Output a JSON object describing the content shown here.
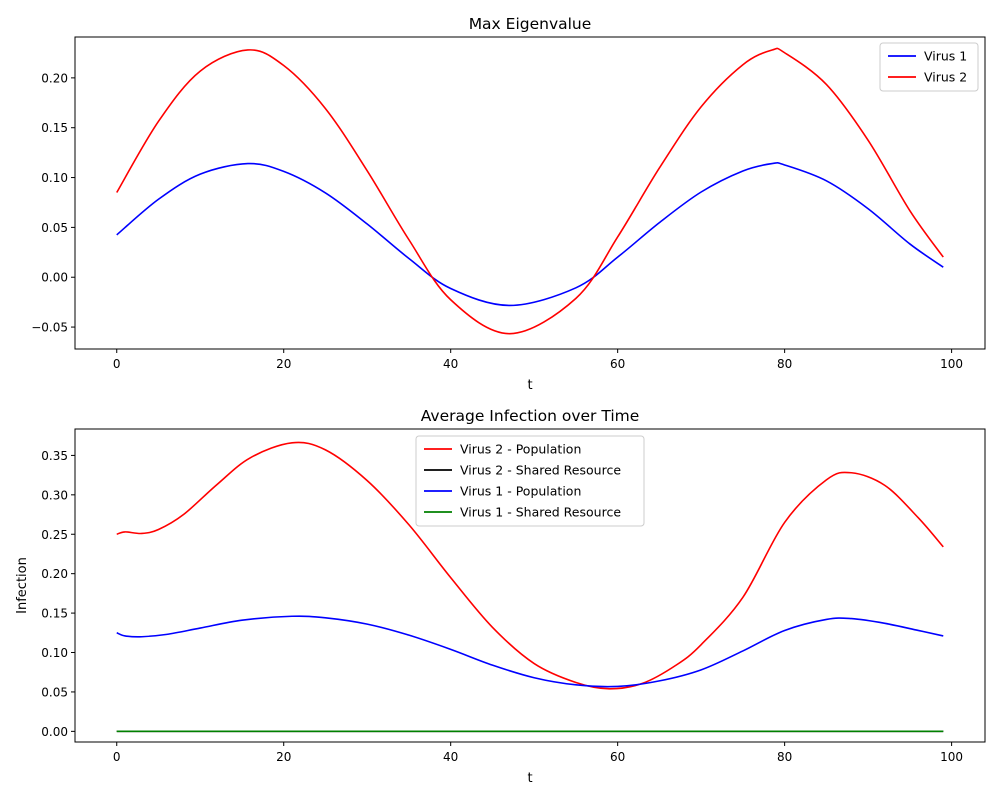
{
  "chart_data": [
    {
      "type": "line",
      "title": "Max Eigenvalue",
      "xlabel": "t",
      "ylabel": "",
      "xlim": [
        -5,
        104
      ],
      "ylim": [
        -0.072,
        0.241
      ],
      "xticks": [
        0,
        20,
        40,
        60,
        80,
        100
      ],
      "xtick_labels": [
        "0",
        "20",
        "40",
        "60",
        "80",
        "100"
      ],
      "yticks": [
        -0.05,
        0.0,
        0.05,
        0.1,
        0.15,
        0.2
      ],
      "ytick_labels": [
        "−0.05",
        "0.00",
        "0.05",
        "0.10",
        "0.15",
        "0.20"
      ],
      "grid": false,
      "legend_position": "upper right",
      "series": [
        {
          "name": "Virus 1",
          "color": "#0000ff",
          "x": [
            0,
            5,
            10,
            15.7,
            20,
            25,
            30,
            35,
            40,
            47.1,
            55,
            60,
            65,
            70,
            75,
            78.5,
            80,
            85,
            90,
            95,
            99
          ],
          "y": [
            0.0425,
            0.0782,
            0.1034,
            0.114,
            0.1062,
            0.0846,
            0.0534,
            0.0188,
            -0.0113,
            -0.0283,
            -0.0106,
            0.0202,
            0.0548,
            0.0855,
            0.1066,
            0.114,
            0.1126,
            0.0967,
            0.0687,
            0.0334,
            0.0101
          ]
        },
        {
          "name": "Virus 2",
          "color": "#ff0000",
          "x": [
            0,
            5,
            10,
            15.7,
            20,
            25,
            30,
            35,
            40,
            47.1,
            55,
            60,
            65,
            70,
            75,
            78.5,
            80,
            85,
            90,
            95,
            99
          ],
          "y": [
            0.085,
            0.1564,
            0.2068,
            0.228,
            0.2124,
            0.1692,
            0.1068,
            0.0376,
            -0.0226,
            -0.0566,
            -0.0212,
            0.0404,
            0.1096,
            0.171,
            0.2132,
            0.228,
            0.2252,
            0.1934,
            0.1374,
            0.0668,
            0.0202
          ]
        }
      ]
    },
    {
      "type": "line",
      "title": "Average Infection over Time",
      "xlabel": "t",
      "ylabel": "Infection",
      "xlim": [
        -5,
        104
      ],
      "ylim": [
        -0.0135,
        0.3835
      ],
      "xticks": [
        0,
        20,
        40,
        60,
        80,
        100
      ],
      "xtick_labels": [
        "0",
        "20",
        "40",
        "60",
        "80",
        "100"
      ],
      "yticks": [
        0.0,
        0.05,
        0.1,
        0.15,
        0.2,
        0.25,
        0.3,
        0.35
      ],
      "ytick_labels": [
        "0.00",
        "0.05",
        "0.10",
        "0.15",
        "0.20",
        "0.25",
        "0.30",
        "0.35"
      ],
      "grid": false,
      "legend_position": "upper center",
      "series": [
        {
          "name": "Virus 2 - Population",
          "color": "#ff0000",
          "x": [
            0,
            1,
            3,
            5,
            8,
            12,
            16,
            21,
            25,
            30,
            35,
            40,
            45,
            50,
            55,
            59,
            63,
            67,
            70,
            75,
            80,
            85,
            88,
            92,
            96,
            99
          ],
          "y": [
            0.25,
            0.253,
            0.251,
            0.256,
            0.275,
            0.313,
            0.347,
            0.366,
            0.357,
            0.318,
            0.262,
            0.195,
            0.132,
            0.086,
            0.062,
            0.054,
            0.061,
            0.084,
            0.11,
            0.17,
            0.265,
            0.319,
            0.328,
            0.312,
            0.271,
            0.234
          ]
        },
        {
          "name": "Virus 2 - Shared Resource",
          "color": "#000000",
          "x": [
            0,
            99
          ],
          "y": [
            0.0,
            0.0
          ]
        },
        {
          "name": "Virus 1 - Population",
          "color": "#0000ff",
          "x": [
            0,
            1,
            3,
            6,
            10,
            15,
            21,
            25,
            30,
            35,
            40,
            45,
            50,
            55,
            60,
            65,
            70,
            75,
            80,
            85,
            88,
            92,
            96,
            99
          ],
          "y": [
            0.125,
            0.121,
            0.12,
            0.123,
            0.131,
            0.141,
            0.146,
            0.144,
            0.136,
            0.122,
            0.104,
            0.084,
            0.068,
            0.059,
            0.057,
            0.064,
            0.078,
            0.102,
            0.128,
            0.142,
            0.143,
            0.137,
            0.128,
            0.121
          ]
        },
        {
          "name": "Virus 1 - Shared Resource",
          "color": "#008000",
          "x": [
            0,
            99
          ],
          "y": [
            0.0,
            0.0
          ]
        }
      ]
    }
  ]
}
